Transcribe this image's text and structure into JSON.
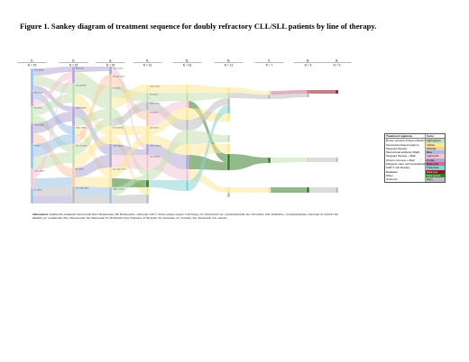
{
  "title": "Figure 1. Sankey diagram of treatment sequence for doubly refractory CLL/SLL patients by line of therapy.",
  "columns": [
    {
      "label": "1L",
      "n": "N = 25"
    },
    {
      "label": "2L",
      "n": "N = 25"
    },
    {
      "label": "3L",
      "n": "N = 25"
    },
    {
      "label": "4L",
      "n": "N = 23"
    },
    {
      "label": "5L",
      "n": "N = 18"
    },
    {
      "label": "6L",
      "n": "N = 12"
    },
    {
      "label": "7L",
      "n": "N = 7"
    },
    {
      "label": "8L",
      "n": "N = 6"
    },
    {
      "label": "9L",
      "n": "N = 6"
    }
  ],
  "colors": {
    "light_green": "#c6e0b4",
    "yellow": "#fce89a",
    "orange": "#f8cbad",
    "blue": "#9dc3e6",
    "light_pink": "#f4c7d6",
    "purple": "#b4a7d6",
    "dark_pink": "#c9718f",
    "turquoise": "#8fd4d4",
    "dark_red": "#8b1a1a",
    "dark_green": "#3a7d2c",
    "grey": "#bfbfbf"
  },
  "legend": {
    "header_regimen": "Treatment regimens",
    "header_color": "Color",
    "items": [
      {
        "name": "Bruton tyrosine kinase inhibitors",
        "color_name": "Light green",
        "hex": "#c6e0b4"
      },
      {
        "name": "Venetoclax-based regimen",
        "color_name": "Yellow",
        "hex": "#fce89a"
      },
      {
        "name": "Targeted therapy",
        "color_name": "Orange",
        "hex": "#f8cbad"
      },
      {
        "name": "Monoclonal antibody (Mab)",
        "color_name": "Blue",
        "hex": "#9dc3e6"
      },
      {
        "name": "Targeted therapy + Mab",
        "color_name": "Light pink",
        "hex": "#f4c7d6"
      },
      {
        "name": "Chemo-immuno + Mab",
        "color_name": "Purple",
        "hex": "#b4a7d6"
      },
      {
        "name": "Allogenic stem cell transplantation",
        "color_name": "Dark pink",
        "hex": "#c9718f"
      },
      {
        "name": "CAR-T cell therapy",
        "color_name": "Turquoise",
        "hex": "#8fd4d4"
      },
      {
        "name": "Radiation",
        "color_name": "Dark red",
        "hex": "#8b1a1a"
      },
      {
        "name": "Other",
        "color_name": "Dark green",
        "hex": "#3a7d2c"
      },
      {
        "name": "Unknown",
        "color_name": "Grey",
        "hex": "#bfbfbf"
      }
    ]
  },
  "abbreviations": {
    "label": "Abbreviations:",
    "text": "Acalabrutinib; Acalapenib; Alemtuzumab; Bend, Bendamustine; BR, Bendamustine + Rituximab; CAR-T, chimeric antigen receptor T-cell therapy; Chl, Chlorambucil; Cyc, Cyclophosphamide; Dox, Doxorubicin; FCR, Fludarabine + Cyclophosphamide + Rituximab; Ibr, Ibrutinib; Idel, Idelalisib; Len, Lenalidomide; Obin, Obinutuzumab; Ofa, Ofatumumab; Pir, Pirtobrutinib; Pred, Prednisone; R, Rituximab; Ven, Venetoclax; Vin, Vincristine; Zan, Zanubrutinib; Unk, unknown."
  },
  "node_labels": [
    "FCR (28%)",
    "BR (16%)",
    "Ibr (12%)",
    "Chl+R (8%)",
    "R (8%)",
    "Other (28%)",
    "Ibr (36%)",
    "BR (12%)",
    "Ven+R (8%)",
    "Idel+R (8%)",
    "Other (36%)",
    "Ven+R (24%)",
    "Ibr (16%)",
    "Ven+Obin (8%)",
    "Other (52%)",
    "Ven+Ibr (17%)",
    "Pir (13%)",
    "Ven+R (9%)",
    "Other (61%)",
    "Ven+Obin (17%)",
    "CAR-T (11%)",
    "Other (72%)",
    "Pir (25%)",
    "Other (75%)",
    "Pir (29%)",
    "Unk (71%)",
    "Other (100%)",
    "Unk (100%)"
  ]
}
